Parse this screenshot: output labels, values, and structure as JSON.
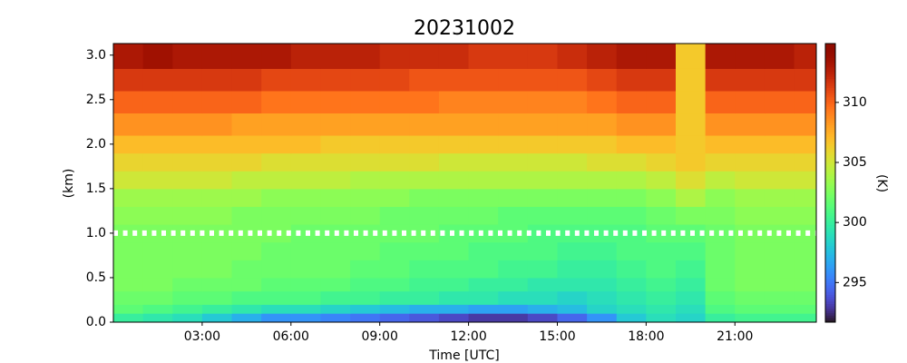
{
  "chart_data": {
    "type": "heatmap",
    "title": "20231002",
    "x_label": "Time [UTC]",
    "y_label": "(km)",
    "colorbar_label": "(K)",
    "colormap": "turbo",
    "xbins": [
      0,
      1,
      2,
      3,
      4,
      5,
      6,
      7,
      8,
      9,
      10,
      11,
      12,
      13,
      14,
      15,
      16,
      17,
      18,
      19,
      20,
      21,
      22,
      23,
      23.75
    ],
    "ybins": [
      0,
      0.1,
      0.2,
      0.35,
      0.5,
      0.7,
      0.9,
      1.1,
      1.3,
      1.5,
      1.7,
      1.9,
      2.1,
      2.35,
      2.6,
      2.85,
      3.13
    ],
    "values": [
      [
        300,
        299.5,
        299,
        298,
        297,
        296,
        296,
        295.5,
        295,
        294.5,
        294,
        293.5,
        293,
        293,
        293.5,
        294.5,
        296,
        298,
        299,
        298.5,
        300,
        300.5,
        300.5,
        300.5
      ],
      [
        301.5,
        301,
        300.5,
        300,
        299.5,
        299,
        299,
        298.5,
        298,
        297.5,
        297,
        297,
        296.5,
        296.5,
        297,
        297.5,
        298.5,
        299,
        299.5,
        299,
        301,
        301.5,
        301.5,
        301.5
      ],
      [
        302,
        302,
        301.5,
        301.5,
        301,
        301,
        301,
        300.5,
        300.5,
        300,
        300,
        299.5,
        299.5,
        299,
        299,
        298.5,
        299,
        299.5,
        300,
        299.5,
        301.5,
        302,
        302,
        302
      ],
      [
        302.5,
        302.5,
        302,
        302,
        302,
        301.5,
        301.5,
        301.5,
        301,
        301,
        300.5,
        300.5,
        300,
        300,
        299.5,
        299.5,
        299.5,
        300,
        300.5,
        300,
        302,
        302.5,
        302.5,
        302.5
      ],
      [
        302.5,
        302.5,
        302.5,
        302.5,
        302,
        302,
        302,
        302,
        301.5,
        301.5,
        301,
        301,
        301,
        300.5,
        300.5,
        300,
        300,
        300.5,
        301,
        300.5,
        302,
        302.5,
        302.5,
        302.5
      ],
      [
        302.5,
        302.5,
        302.5,
        302.5,
        302.5,
        302,
        302,
        302,
        302,
        301.5,
        301.5,
        301.5,
        301,
        301,
        301,
        300.5,
        300.5,
        301,
        301,
        301,
        302,
        302.5,
        302.5,
        302.5
      ],
      [
        302.5,
        302.5,
        302.5,
        302.5,
        302.5,
        302.5,
        302,
        302,
        302,
        302,
        302,
        301.5,
        301.5,
        301.5,
        301,
        301,
        301,
        301,
        301.5,
        301.5,
        302,
        302.5,
        302.5,
        302.5
      ],
      [
        303,
        303,
        303,
        303,
        302.5,
        302.5,
        302.5,
        302.5,
        302.5,
        302,
        302,
        302,
        302,
        301.5,
        301.5,
        301.5,
        301.5,
        301.5,
        302,
        302.5,
        302.5,
        303,
        303,
        303
      ],
      [
        303.5,
        303.5,
        303.5,
        303.5,
        303.5,
        303,
        303,
        303,
        303,
        303,
        302.5,
        302.5,
        302.5,
        302.5,
        302.5,
        302.5,
        302.5,
        302.5,
        303,
        304,
        303,
        303.5,
        303.5,
        303.5
      ],
      [
        305,
        305,
        305,
        305,
        304.5,
        304.5,
        304.5,
        304.5,
        304,
        304,
        304,
        304,
        304,
        304,
        304,
        304,
        304,
        304,
        304.5,
        305.5,
        304.5,
        305,
        305,
        305
      ],
      [
        306,
        306,
        306,
        306,
        306,
        305.5,
        305.5,
        305.5,
        305.5,
        305.5,
        305.5,
        305,
        305,
        305,
        305,
        305,
        305.5,
        305.5,
        306,
        306.5,
        306,
        306,
        306,
        306
      ],
      [
        307,
        307,
        307,
        307,
        307,
        307,
        307,
        306.5,
        306.5,
        306.5,
        306.5,
        306.5,
        306.5,
        306.5,
        306.5,
        306.5,
        306.5,
        307,
        307,
        306.5,
        307,
        307,
        307,
        307
      ],
      [
        308.5,
        308.5,
        308.5,
        308.5,
        308,
        308,
        308,
        308,
        308,
        308,
        308,
        308,
        308,
        308,
        308,
        308,
        308,
        308.5,
        308.5,
        306.5,
        308.5,
        308.5,
        308.5,
        308.5
      ],
      [
        310,
        310,
        310,
        310,
        310,
        309.5,
        309.5,
        309.5,
        309.5,
        309.5,
        309.5,
        309,
        309,
        309,
        309,
        309,
        309.5,
        310,
        310,
        306.5,
        310,
        310,
        310,
        310
      ],
      [
        311.5,
        311.5,
        311.5,
        311.5,
        311.5,
        311,
        311,
        311,
        311,
        311,
        310.5,
        310.5,
        310.5,
        310.5,
        310.5,
        310.5,
        311,
        311.5,
        311.5,
        306.5,
        311.5,
        311.5,
        311.5,
        311.5
      ],
      [
        313,
        313.5,
        313,
        313,
        313,
        313,
        312.5,
        312.5,
        312.5,
        312,
        312,
        312,
        311.5,
        311.5,
        311.5,
        312,
        312.5,
        313,
        313,
        306.5,
        313,
        313,
        313,
        312.5
      ]
    ],
    "reference_line": {
      "y": 1.0,
      "color": "#ffffff"
    },
    "xlim": [
      0,
      23.75
    ],
    "ylim": [
      0,
      3.13
    ],
    "clim": [
      291.7,
      314.9
    ],
    "xticks": [
      {
        "value": 3,
        "label": "03:00"
      },
      {
        "value": 6,
        "label": "06:00"
      },
      {
        "value": 9,
        "label": "09:00"
      },
      {
        "value": 12,
        "label": "12:00"
      },
      {
        "value": 15,
        "label": "15:00"
      },
      {
        "value": 18,
        "label": "18:00"
      },
      {
        "value": 21,
        "label": "21:00"
      }
    ],
    "yticks": [
      {
        "value": 0,
        "label": "0.0"
      },
      0.5,
      {
        "value": 1,
        "label": "1.0"
      },
      1.5,
      {
        "value": 2,
        "label": "2.0"
      },
      2.5,
      {
        "value": 3,
        "label": "3.0"
      }
    ],
    "cticks": [
      295,
      300,
      305,
      310
    ]
  }
}
